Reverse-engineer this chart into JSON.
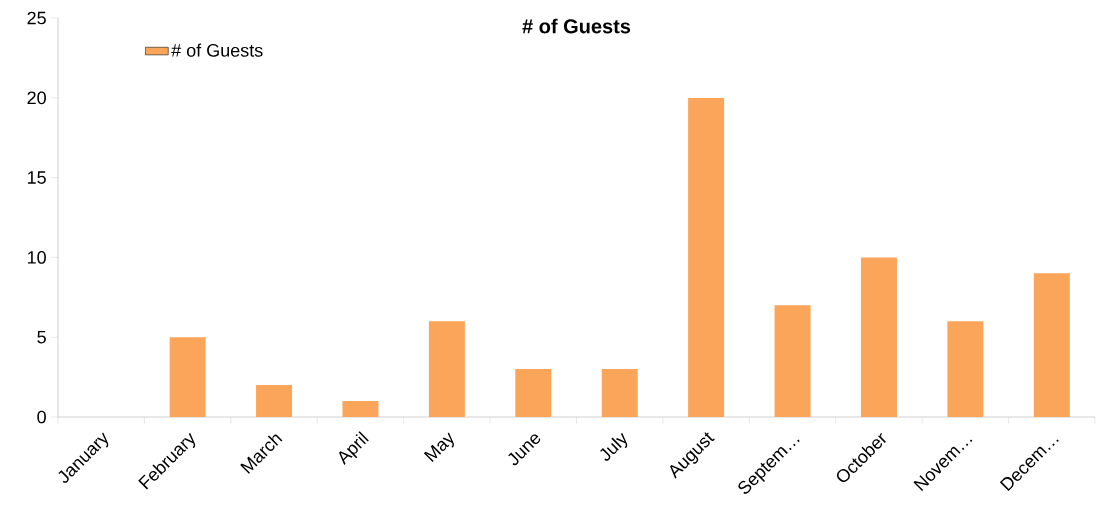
{
  "chart_data": {
    "type": "bar",
    "title": "# of Guests",
    "categories": [
      "January",
      "February",
      "March",
      "April",
      "May",
      "June",
      "July",
      "August",
      "Septem…",
      "October",
      "Novem…",
      "Decem…"
    ],
    "series": [
      {
        "name": "# of Guests",
        "color": "#fba55a",
        "values": [
          0,
          5,
          2,
          1,
          6,
          3,
          3,
          20,
          7,
          10,
          6,
          9
        ]
      }
    ],
    "ylim": [
      0,
      25
    ],
    "yticks": [
      0,
      5,
      10,
      15,
      20,
      25
    ],
    "grid": false,
    "legend": "top left"
  }
}
